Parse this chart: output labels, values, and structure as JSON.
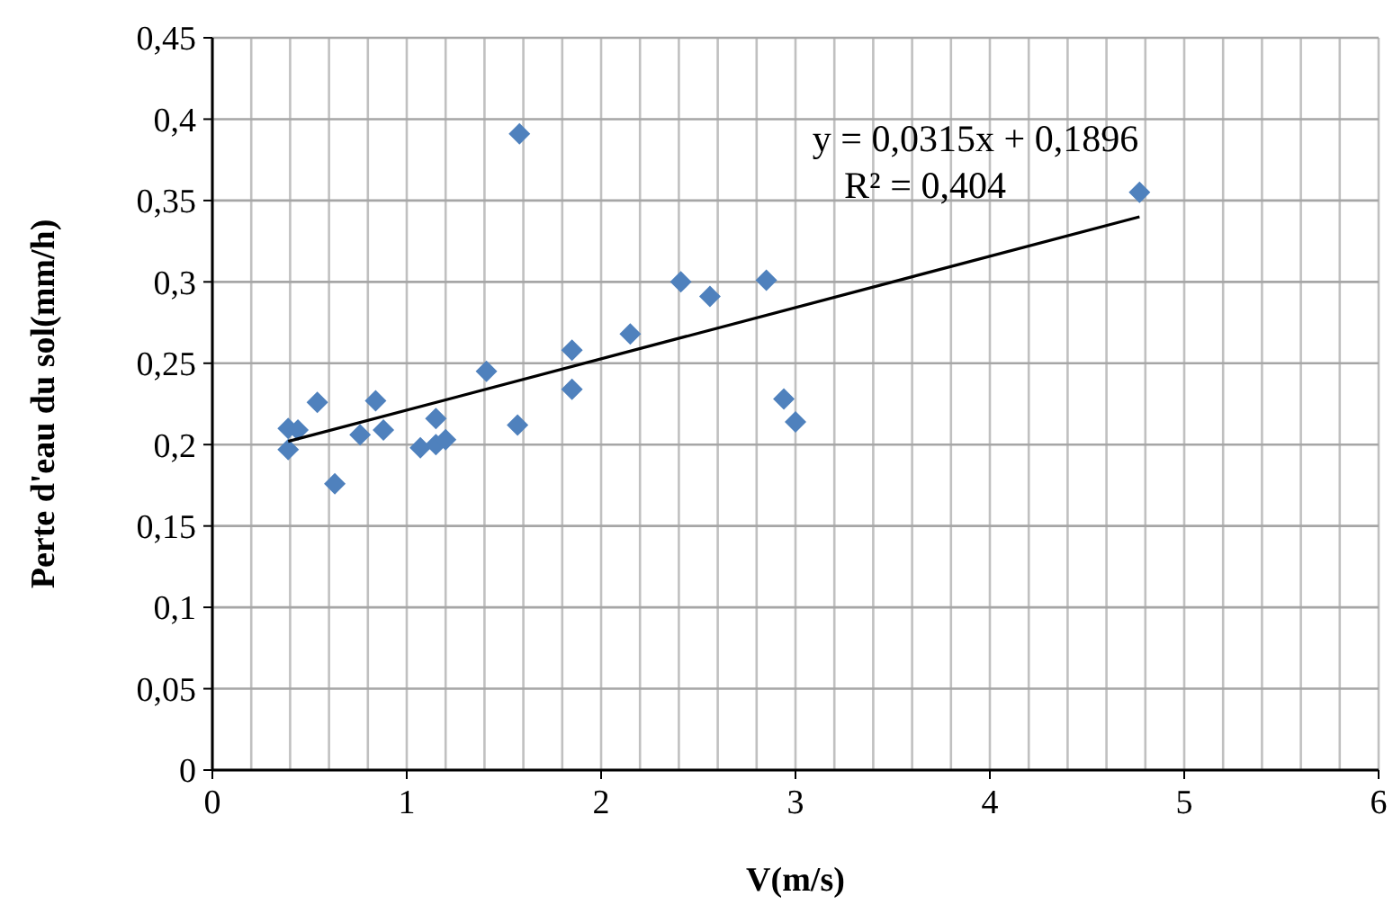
{
  "chart_data": {
    "type": "scatter",
    "xlabel": "V(m/s)",
    "ylabel": "Perte d'eau du sol(mm/h)",
    "xlim": [
      0,
      6
    ],
    "ylim": [
      0,
      0.45
    ],
    "xticks": [
      0,
      {
        "value": 0.2,
        "label": null
      },
      {
        "value": 0.4,
        "label": null
      },
      {
        "value": 0.6,
        "label": null
      },
      {
        "value": 0.8,
        "label": null
      },
      1,
      {
        "value": 1.2,
        "label": null
      },
      {
        "value": 1.4,
        "label": null
      },
      {
        "value": 1.6,
        "label": null
      },
      {
        "value": 1.8,
        "label": null
      },
      2,
      {
        "value": 2.2,
        "label": null
      },
      {
        "value": 2.4,
        "label": null
      },
      {
        "value": 2.6,
        "label": null
      },
      {
        "value": 2.8,
        "label": null
      },
      3,
      {
        "value": 3.2,
        "label": null
      },
      {
        "value": 3.4,
        "label": null
      },
      {
        "value": 3.6,
        "label": null
      },
      {
        "value": 3.8,
        "label": null
      },
      4,
      {
        "value": 4.2,
        "label": null
      },
      {
        "value": 4.4,
        "label": null
      },
      {
        "value": 4.6,
        "label": null
      },
      {
        "value": 4.8,
        "label": null
      },
      5,
      {
        "value": 5.2,
        "label": null
      },
      {
        "value": 5.4,
        "label": null
      },
      {
        "value": 5.6,
        "label": null
      },
      {
        "value": 5.8,
        "label": null
      },
      6
    ],
    "yticks": [
      0,
      {
        "value": 0.05,
        "label": "0,05"
      },
      {
        "value": 0.1,
        "label": "0,1"
      },
      {
        "value": 0.15,
        "label": "0,15"
      },
      {
        "value": 0.2,
        "label": "0,2"
      },
      {
        "value": 0.25,
        "label": "0,25"
      },
      {
        "value": 0.3,
        "label": "0,3"
      },
      {
        "value": 0.35,
        "label": "0,35"
      },
      {
        "value": 0.4,
        "label": "0,4"
      },
      {
        "value": 0.45,
        "label": "0,45"
      }
    ],
    "grid": true,
    "marker": "diamond",
    "annotations": [
      "y = 0,0315x + 0,1896",
      "R² = 0,404"
    ],
    "series": [
      {
        "color": "#4f81bd",
        "x": [
          0.39,
          0.44,
          0.39,
          0.54,
          0.63,
          0.76,
          0.84,
          0.88,
          1.07,
          1.15,
          1.15,
          1.2,
          1.41,
          1.57,
          1.58,
          1.85,
          1.85,
          2.15,
          2.41,
          2.56,
          2.85,
          2.94,
          3.0,
          4.77
        ],
        "values": [
          0.21,
          0.209,
          0.197,
          0.226,
          0.176,
          0.206,
          0.227,
          0.209,
          0.198,
          0.216,
          0.2,
          0.203,
          0.245,
          0.212,
          0.391,
          0.258,
          0.234,
          0.268,
          0.3,
          0.291,
          0.301,
          0.228,
          0.214,
          0.355
        ]
      },
      {
        "type": "line",
        "color": "#000000",
        "marker": "none",
        "x": [
          0.39,
          4.77
        ],
        "values": [
          0.202,
          0.34
        ]
      }
    ]
  }
}
